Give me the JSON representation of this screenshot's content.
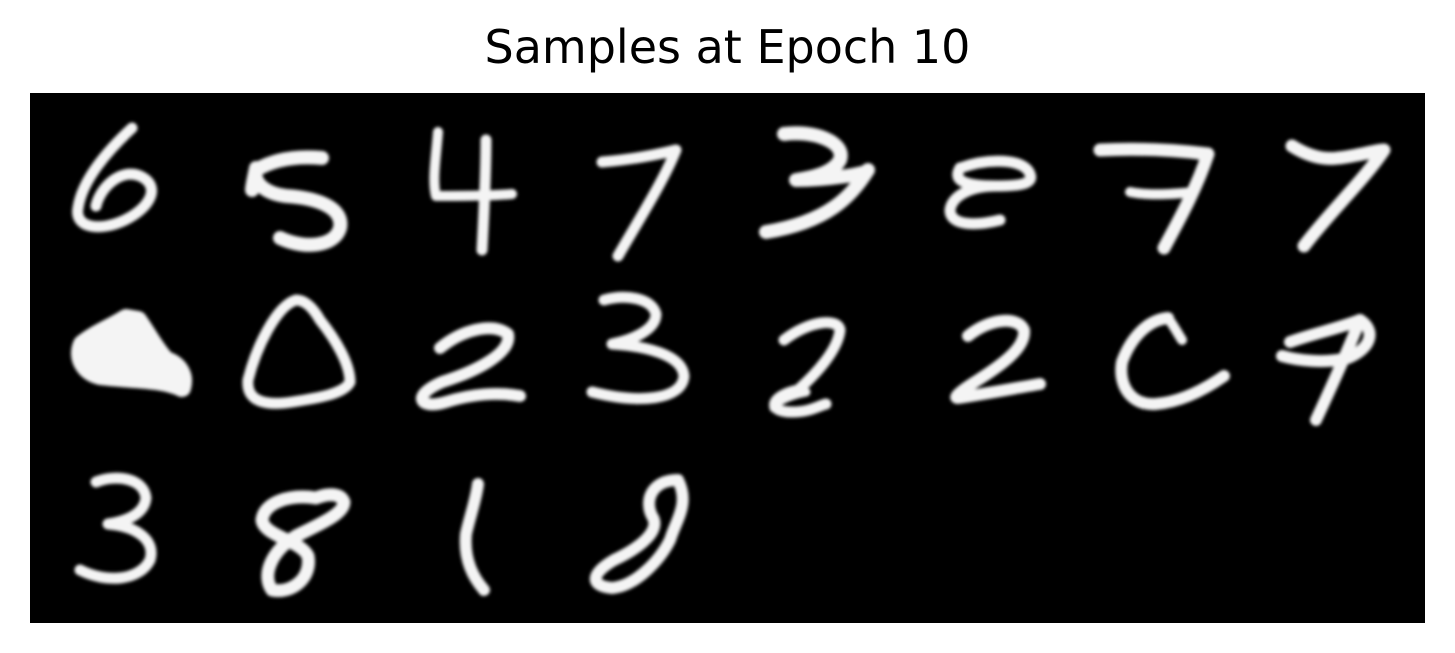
{
  "figure": {
    "title": "Samples at Epoch 10",
    "background_color": "#000000",
    "stroke_color": "#f4f4f4",
    "columns": 8,
    "rows": 3,
    "samples": [
      {
        "row": 0,
        "col": 0,
        "shape": "digit-6"
      },
      {
        "row": 0,
        "col": 1,
        "shape": "digit-5"
      },
      {
        "row": 0,
        "col": 2,
        "shape": "digit-4"
      },
      {
        "row": 0,
        "col": 3,
        "shape": "digit-7"
      },
      {
        "row": 0,
        "col": 4,
        "shape": "digit-3"
      },
      {
        "row": 0,
        "col": 5,
        "shape": "digit-8-ambiguous"
      },
      {
        "row": 0,
        "col": 6,
        "shape": "digit-7"
      },
      {
        "row": 0,
        "col": 7,
        "shape": "digit-7"
      },
      {
        "row": 1,
        "col": 0,
        "shape": "blob"
      },
      {
        "row": 1,
        "col": 1,
        "shape": "digit-0"
      },
      {
        "row": 1,
        "col": 2,
        "shape": "digit-2"
      },
      {
        "row": 1,
        "col": 3,
        "shape": "digit-3"
      },
      {
        "row": 1,
        "col": 4,
        "shape": "digit-2"
      },
      {
        "row": 1,
        "col": 5,
        "shape": "digit-2"
      },
      {
        "row": 1,
        "col": 6,
        "shape": "letter-c-like"
      },
      {
        "row": 1,
        "col": 7,
        "shape": "digit-9"
      },
      {
        "row": 2,
        "col": 0,
        "shape": "digit-3"
      },
      {
        "row": 2,
        "col": 1,
        "shape": "digit-8"
      },
      {
        "row": 2,
        "col": 2,
        "shape": "digit-1"
      },
      {
        "row": 2,
        "col": 3,
        "shape": "digit-8"
      }
    ]
  }
}
